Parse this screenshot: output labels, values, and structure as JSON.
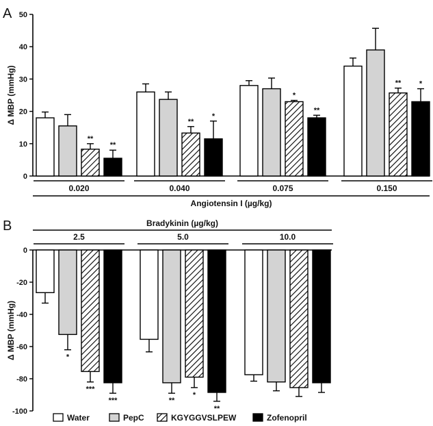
{
  "colors": {
    "water": "#ffffff",
    "pepc": "#d3d3d3",
    "kgyggvslpew": "hatch",
    "zofenopril": "#000000",
    "stroke": "#000000"
  },
  "legend": {
    "items": [
      {
        "name": "Water",
        "style": "water"
      },
      {
        "name": "PepC",
        "style": "pepc"
      },
      {
        "name": "KGYGGVSLPEW",
        "style": "kgyggvslpew"
      },
      {
        "name": "Zofenopril",
        "style": "zofenopril"
      }
    ]
  },
  "chart_data": [
    {
      "panel": "A",
      "type": "bar",
      "ylabel": "Δ MBP (mmHg)",
      "xlabel": "Angiotensin I (µg/kg)",
      "ylim": [
        0,
        50
      ],
      "yticks": [
        0,
        10,
        20,
        30,
        40,
        50
      ],
      "categories": [
        "0.020",
        "0.040",
        "0.075",
        "0.150"
      ],
      "series": [
        {
          "name": "Water",
          "style": "water",
          "values": [
            18,
            26,
            28,
            34
          ],
          "errors": [
            1.8,
            2.5,
            1.5,
            2.5
          ],
          "sig": [
            "",
            "",
            "",
            ""
          ]
        },
        {
          "name": "PepC",
          "style": "pepc",
          "values": [
            15.5,
            23.7,
            27,
            39
          ],
          "errors": [
            3.5,
            2.3,
            3.3,
            6.7
          ],
          "sig": [
            "",
            "",
            "",
            ""
          ]
        },
        {
          "name": "KGYGGVSLPEW",
          "style": "kgyggvslpew",
          "values": [
            8.3,
            13.3,
            23,
            25.7
          ],
          "errors": [
            1.7,
            2.0,
            0.4,
            1.5
          ],
          "sig": [
            "**",
            "**",
            "*",
            "**"
          ]
        },
        {
          "name": "Zofenopril",
          "style": "zofenopril",
          "values": [
            5.5,
            11.5,
            18,
            23
          ],
          "errors": [
            2.5,
            5.5,
            0.8,
            4.0
          ],
          "sig": [
            "**",
            "*",
            "**",
            "*"
          ]
        }
      ]
    },
    {
      "panel": "B",
      "type": "bar",
      "ylabel": "Δ MBP (mmHg)",
      "xlabel": "Bradykinin (µg/kg)",
      "ylim": [
        -100,
        0
      ],
      "yticks": [
        0,
        -20,
        -40,
        -60,
        -80,
        -100
      ],
      "categories": [
        "2.5",
        "5.0",
        "10.0"
      ],
      "series": [
        {
          "name": "Water",
          "style": "water",
          "values": [
            -26.5,
            -55.5,
            -77.5
          ],
          "errors": [
            6.5,
            7.8,
            4.0
          ],
          "sig": [
            "",
            "",
            ""
          ]
        },
        {
          "name": "PepC",
          "style": "pepc",
          "values": [
            -52.5,
            -82.5,
            -82
          ],
          "errors": [
            9.5,
            6.5,
            5.5
          ],
          "sig": [
            "*",
            "**",
            ""
          ]
        },
        {
          "name": "KGYGGVSLPEW",
          "style": "kgyggvslpew",
          "values": [
            -75.5,
            -79,
            -85.5
          ],
          "errors": [
            6.5,
            6.5,
            5.5
          ],
          "sig": [
            "***",
            "*",
            ""
          ]
        },
        {
          "name": "Zofenopril",
          "style": "zofenopril",
          "values": [
            -82.5,
            -88.5,
            -82.5
          ],
          "errors": [
            6.5,
            5.5,
            6.0
          ],
          "sig": [
            "***",
            "**",
            ""
          ]
        }
      ]
    }
  ]
}
